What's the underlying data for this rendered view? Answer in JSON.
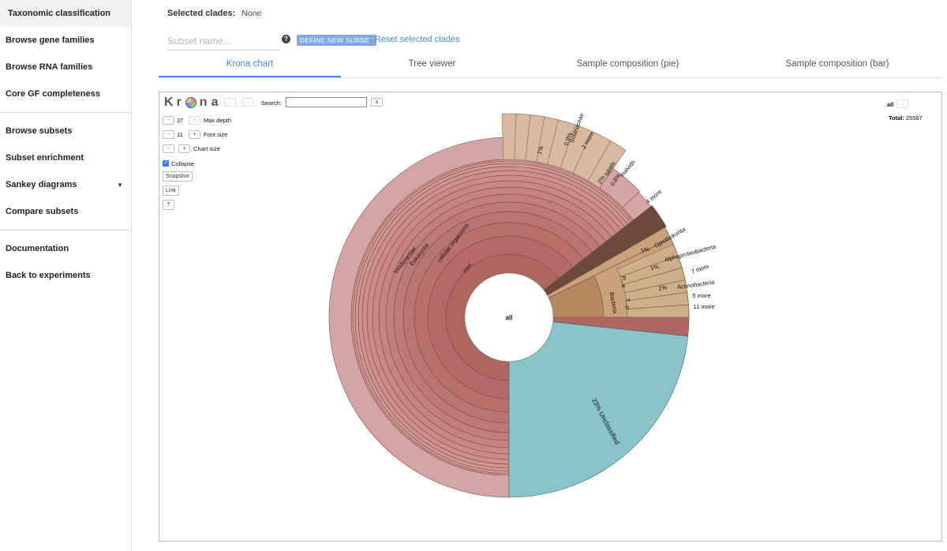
{
  "sidebar": {
    "items": [
      {
        "label": "Taxonomic classification",
        "active": true
      },
      {
        "label": "Browse gene families"
      },
      {
        "label": "Browse RNA families"
      },
      {
        "label": "Core GF completeness"
      },
      {
        "label": "Browse subsets"
      },
      {
        "label": "Subset enrichment"
      },
      {
        "label": "Sankey diagrams",
        "dropdown": true
      },
      {
        "label": "Compare subsets"
      },
      {
        "label": "Documentation"
      },
      {
        "label": "Back to experiments"
      }
    ]
  },
  "header": {
    "selected_label": "Selected clades:",
    "selected_value": "None",
    "subset_placeholder": "Subset name...",
    "define_button": "DEFINE NEW SUBSET",
    "reset_link": "Reset selected clades",
    "separator": "|"
  },
  "tabs": [
    {
      "label": "Krona chart",
      "active": true
    },
    {
      "label": "Tree viewer"
    },
    {
      "label": "Sample composition (pie)"
    },
    {
      "label": "Sample composition (bar)"
    }
  ],
  "krona": {
    "back_icon": "←",
    "forward_icon": "→",
    "search_label": "Search:",
    "search_clear": "x",
    "all_label": "all",
    "all_nav": "↔",
    "total_label": "Total:",
    "total_value": "25587",
    "max_depth_value": "37",
    "max_depth_label": "Max depth",
    "font_size_value": "11",
    "font_size_label": "Font size",
    "chart_size_label": "Chart size",
    "minus": "-",
    "plus": "+",
    "collapse_label": "Collapse",
    "collapse_checked": true,
    "snapshot_button": "Snapshot",
    "link_button": "Link",
    "help_button": "?",
    "center_label": "all",
    "colors": {
      "outer_ring": "#d4a5a5",
      "inner": "#b46a66",
      "unclassified": "#88c4c8",
      "bacteria": "#c9a27c",
      "plant_sub": "#d9b9a0"
    }
  },
  "chart_data": {
    "type": "sunburst",
    "total": 25587,
    "center": "all",
    "labels": {
      "rings": [
        "root",
        "cellular organisms",
        "Eukaryota",
        "Viridiplantae"
      ],
      "unclassified": "23%  Unclassified",
      "bacteria": "Bacteria",
      "small": [
        "1%",
        "0.9%",
        "Solanaceae",
        "2 more",
        "2%",
        "fabids",
        "0.8%",
        "malvids",
        "4 more",
        "1%",
        "Opisthokonta",
        "1%",
        "Alphaproteobacteria",
        "7 more",
        "1%",
        "Actinobacteria",
        "5 more",
        "11 more",
        "P...a",
        "T...p"
      ]
    },
    "segments": [
      {
        "name": "Unclassified",
        "percent": 23
      },
      {
        "name": "Bacteria"
      },
      {
        "name": "Opisthokonta",
        "percent": 1
      },
      {
        "name": "Viridiplantae"
      }
    ]
  }
}
